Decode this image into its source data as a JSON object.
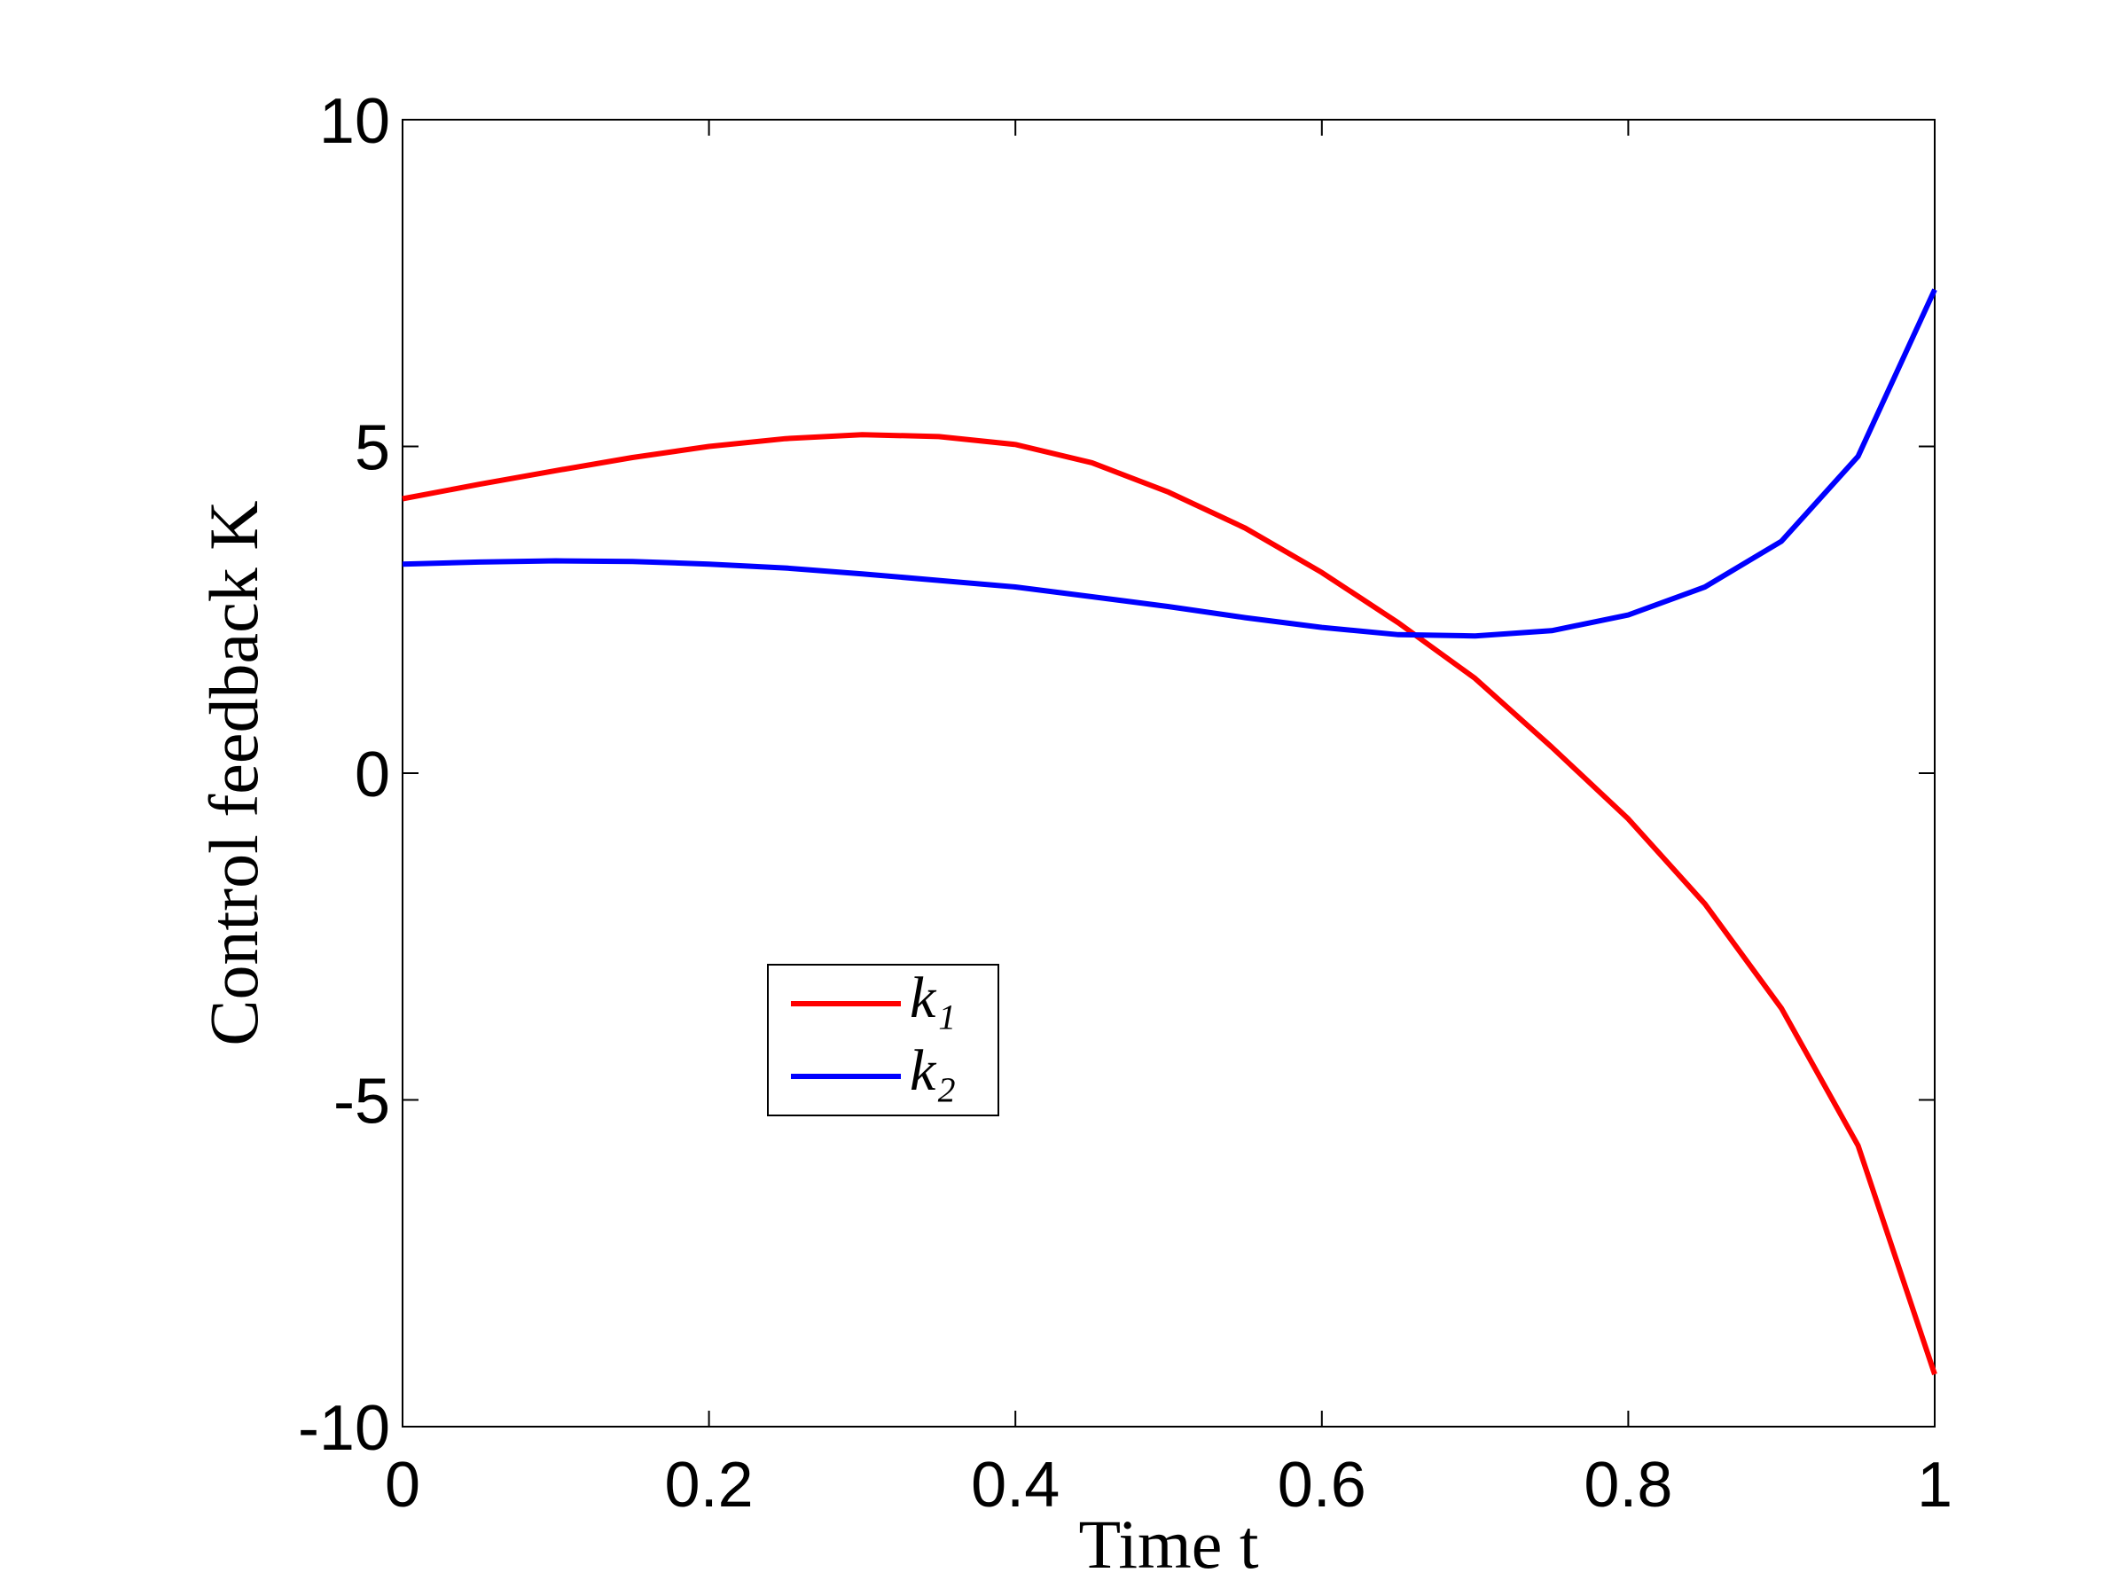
{
  "chart_data": {
    "type": "line",
    "x_label": "Time t",
    "y_label": "Control feedback K",
    "x": [
      0,
      0.05,
      0.1,
      0.15,
      0.2,
      0.25,
      0.3,
      0.35,
      0.4,
      0.45,
      0.5,
      0.55,
      0.6,
      0.65,
      0.7,
      0.75,
      0.8,
      0.85,
      0.9,
      0.95,
      1
    ],
    "series": [
      {
        "name": "k₁",
        "color": "#ff0000",
        "values": [
          4.2,
          4.42,
          4.63,
          4.83,
          5.0,
          5.12,
          5.18,
          5.15,
          5.03,
          4.75,
          4.3,
          3.75,
          3.07,
          2.3,
          1.45,
          0.4,
          -0.7,
          -2.0,
          -3.6,
          -5.7,
          -9.2
        ]
      },
      {
        "name": "k₂",
        "color": "#0000ff",
        "values": [
          3.2,
          3.23,
          3.25,
          3.24,
          3.2,
          3.14,
          3.05,
          2.95,
          2.85,
          2.7,
          2.55,
          2.38,
          2.23,
          2.12,
          2.1,
          2.18,
          2.42,
          2.85,
          3.55,
          4.85,
          7.4
        ]
      }
    ],
    "xlim": [
      0,
      1
    ],
    "xticks": [
      0,
      0.2,
      0.4,
      0.6,
      0.8,
      1
    ],
    "ylim": [
      -10,
      10
    ],
    "yticks": [
      -10,
      -5,
      0,
      5,
      10
    ],
    "grid": false
  }
}
